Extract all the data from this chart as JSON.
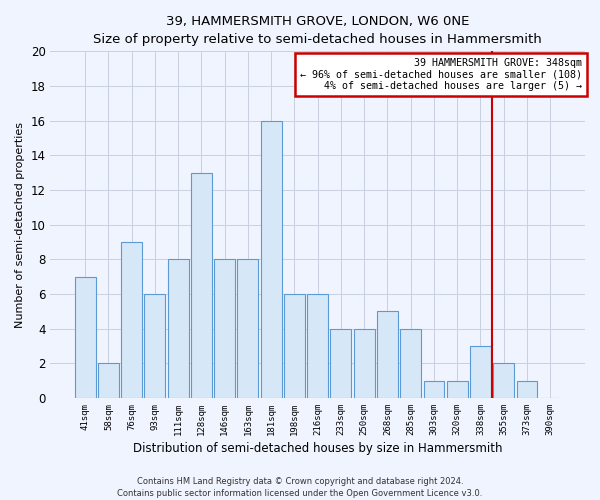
{
  "title": "39, HAMMERSMITH GROVE, LONDON, W6 0NE",
  "subtitle": "Size of property relative to semi-detached houses in Hammersmith",
  "xlabel": "Distribution of semi-detached houses by size in Hammersmith",
  "ylabel": "Number of semi-detached properties",
  "bin_labels": [
    "41sqm",
    "58sqm",
    "76sqm",
    "93sqm",
    "111sqm",
    "128sqm",
    "146sqm",
    "163sqm",
    "181sqm",
    "198sqm",
    "216sqm",
    "233sqm",
    "250sqm",
    "268sqm",
    "285sqm",
    "303sqm",
    "320sqm",
    "338sqm",
    "355sqm",
    "373sqm",
    "390sqm"
  ],
  "bar_heights": [
    7,
    2,
    9,
    6,
    8,
    13,
    8,
    8,
    16,
    6,
    6,
    4,
    4,
    5,
    4,
    1,
    1,
    3,
    2,
    1,
    0
  ],
  "bar_color": "#d6e8f7",
  "bar_edge_color": "#5b9bd5",
  "ylim": [
    0,
    20
  ],
  "yticks": [
    0,
    2,
    4,
    6,
    8,
    10,
    12,
    14,
    16,
    18,
    20
  ],
  "vline_index": 17.5,
  "vline_color": "#cc0000",
  "annotation_title": "39 HAMMERSMITH GROVE: 348sqm",
  "annotation_line1": "← 96% of semi-detached houses are smaller (108)",
  "annotation_line2": "4% of semi-detached houses are larger (5) →",
  "annotation_box_color": "#ffffff",
  "annotation_box_edge": "#cc0000",
  "footer_line1": "Contains HM Land Registry data © Crown copyright and database right 2024.",
  "footer_line2": "Contains public sector information licensed under the Open Government Licence v3.0.",
  "background_color": "#f0f4ff",
  "grid_color": "#c8d0e0"
}
